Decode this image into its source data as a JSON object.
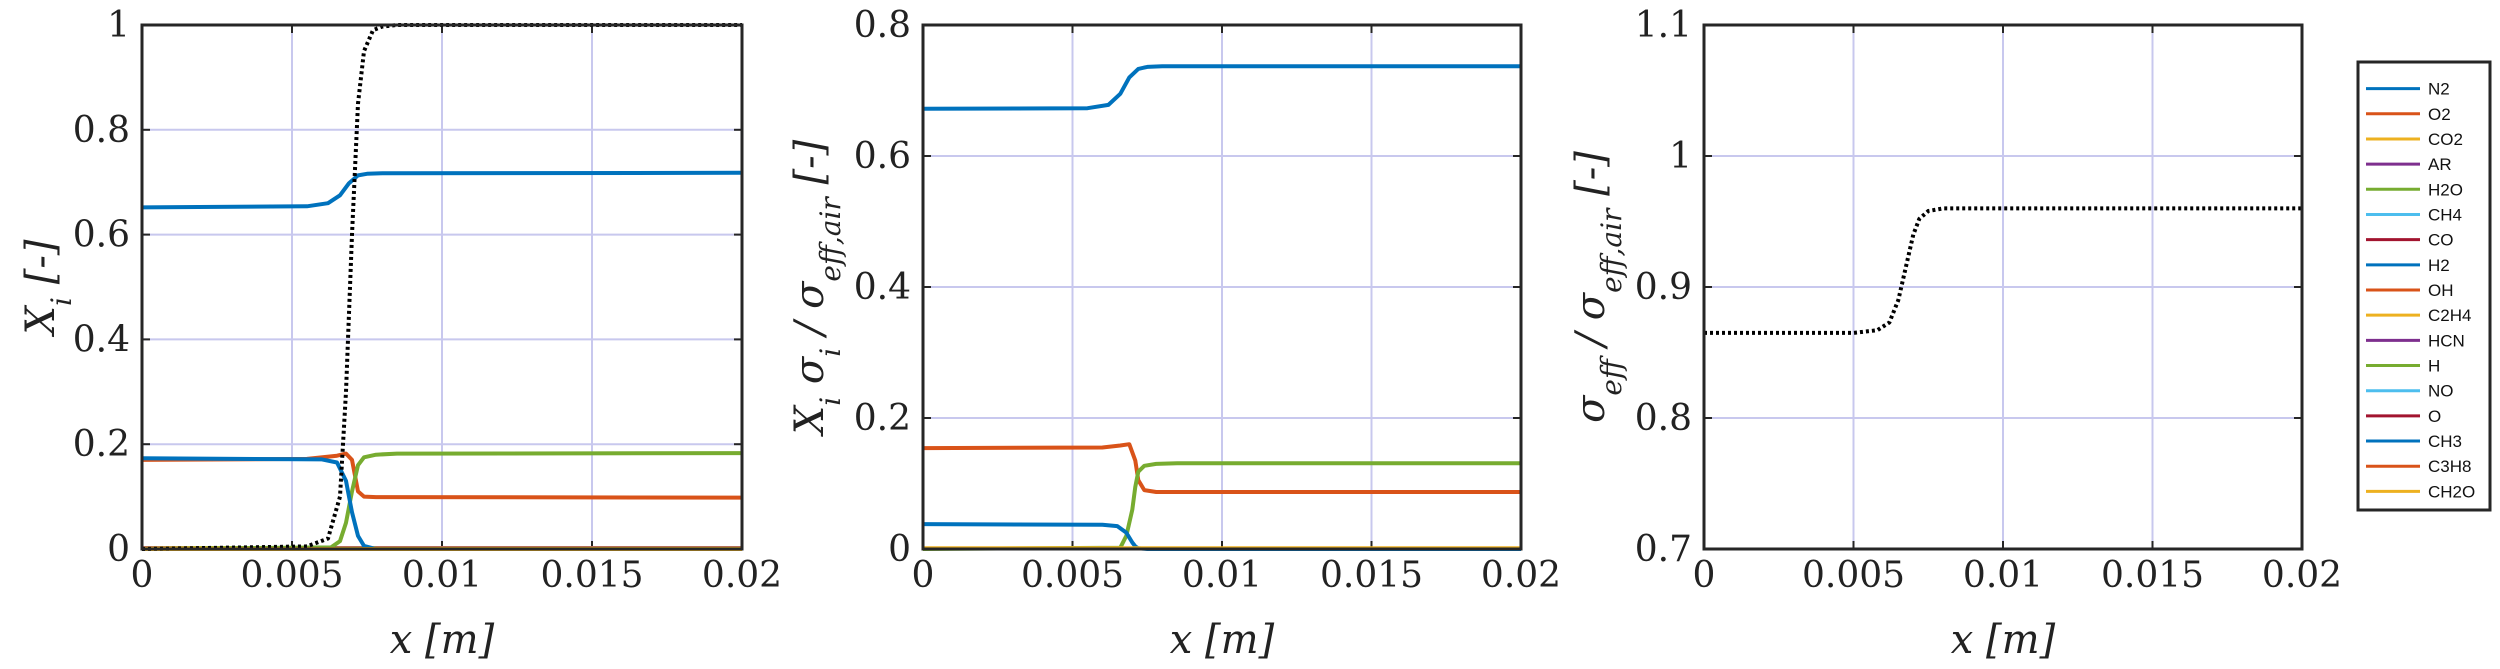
{
  "chart_data": [
    {
      "type": "line",
      "xlabel": "x [m]",
      "ylabel": "X_i [-]",
      "xlim": [
        0,
        0.02
      ],
      "ylim": [
        0,
        1
      ],
      "xticks": [
        "0",
        "0.005",
        "0.01",
        "0.015",
        "0.02"
      ],
      "yticks": [
        "0",
        "0.2",
        "0.4",
        "0.6",
        "0.8",
        "1"
      ],
      "grid": true,
      "series": [
        {
          "name": "N2",
          "color": "#0072BD",
          "style": "solid",
          "x": [
            0,
            0.0055,
            0.0062,
            0.0066,
            0.0069,
            0.0072,
            0.0075,
            0.008,
            0.02
          ],
          "y": [
            0.652,
            0.654,
            0.66,
            0.675,
            0.698,
            0.713,
            0.716,
            0.717,
            0.718
          ]
        },
        {
          "name": "O2",
          "color": "#D95319",
          "style": "solid",
          "x": [
            0,
            0.0055,
            0.0065,
            0.0068,
            0.007,
            0.0071,
            0.0072,
            0.0074,
            0.0078,
            0.02
          ],
          "y": [
            0.17,
            0.172,
            0.178,
            0.182,
            0.17,
            0.14,
            0.11,
            0.1,
            0.099,
            0.098
          ]
        },
        {
          "name": "CO2",
          "color": "#EDB120",
          "style": "solid",
          "x": [
            0,
            0.02
          ],
          "y": [
            0.002,
            0.002
          ]
        },
        {
          "name": "AR",
          "color": "#7E2F8E",
          "style": "solid",
          "x": [
            0,
            0.02
          ],
          "y": [
            0.001,
            0.001
          ]
        },
        {
          "name": "H2O",
          "color": "#77AC30",
          "style": "solid",
          "x": [
            0,
            0.0063,
            0.0066,
            0.0068,
            0.007,
            0.0072,
            0.0074,
            0.0078,
            0.0085,
            0.02
          ],
          "y": [
            0.0,
            0.003,
            0.015,
            0.05,
            0.11,
            0.16,
            0.175,
            0.18,
            0.182,
            0.183
          ]
        },
        {
          "name": "CH4",
          "color": "#4DBEEE",
          "style": "solid",
          "x": [
            0,
            0.02
          ],
          "y": [
            0.0,
            0.0
          ]
        },
        {
          "name": "CO",
          "color": "#A2142F",
          "style": "solid",
          "x": [
            0,
            0.02
          ],
          "y": [
            0.0,
            0.0
          ]
        },
        {
          "name": "H2",
          "color": "#0072BD",
          "style": "solid",
          "x": [
            0,
            0.006,
            0.0065,
            0.0068,
            0.007,
            0.0072,
            0.0074,
            0.0078,
            0.02
          ],
          "y": [
            0.173,
            0.171,
            0.165,
            0.13,
            0.07,
            0.025,
            0.006,
            0.0,
            0.0
          ]
        },
        {
          "name": "OH",
          "color": "#D95319",
          "style": "solid",
          "x": [
            0,
            0.02
          ],
          "y": [
            0.0,
            0.0
          ]
        },
        {
          "name": "C2H4",
          "color": "#EDB120",
          "style": "solid",
          "x": [
            0,
            0.02
          ],
          "y": [
            0.0,
            0.0
          ]
        },
        {
          "name": "HCN",
          "color": "#7E2F8E",
          "style": "solid",
          "x": [
            0,
            0.02
          ],
          "y": [
            0.0,
            0.0
          ]
        },
        {
          "name": "H",
          "color": "#77AC30",
          "style": "solid",
          "x": [
            0,
            0.02
          ],
          "y": [
            0.0,
            0.0
          ]
        },
        {
          "name": "NO",
          "color": "#4DBEEE",
          "style": "solid",
          "x": [
            0,
            0.02
          ],
          "y": [
            0.0,
            0.0
          ]
        },
        {
          "name": "O",
          "color": "#A2142F",
          "style": "solid",
          "x": [
            0,
            0.02
          ],
          "y": [
            0.0,
            0.0
          ]
        },
        {
          "name": "CH3",
          "color": "#0072BD",
          "style": "solid",
          "x": [
            0,
            0.02
          ],
          "y": [
            0.0,
            0.0
          ]
        },
        {
          "name": "C3H8",
          "color": "#D95319",
          "style": "solid",
          "x": [
            0,
            0.02
          ],
          "y": [
            0.0,
            0.0
          ]
        },
        {
          "name": "CH2O",
          "color": "#EDB120",
          "style": "solid",
          "x": [
            0,
            0.02
          ],
          "y": [
            0.0,
            0.0
          ]
        },
        {
          "name": "",
          "color": "#000000",
          "style": "dotted",
          "x": [
            0,
            0.0055,
            0.0062,
            0.0066,
            0.0068,
            0.007,
            0.0072,
            0.0074,
            0.0077,
            0.008,
            0.0085,
            0.02
          ],
          "y": [
            0.0,
            0.005,
            0.02,
            0.1,
            0.3,
            0.6,
            0.85,
            0.95,
            0.99,
            0.997,
            1.0,
            1.0
          ]
        }
      ]
    },
    {
      "type": "line",
      "xlabel": "x [m]",
      "ylabel": "X_i σ_i / σ_eff,air [-]",
      "xlim": [
        0,
        0.02
      ],
      "ylim": [
        0,
        0.8
      ],
      "xticks": [
        "0",
        "0.005",
        "0.01",
        "0.015",
        "0.02"
      ],
      "yticks": [
        "0",
        "0.2",
        "0.4",
        "0.6",
        "0.8"
      ],
      "grid": true,
      "series": [
        {
          "name": "N2",
          "color": "#0072BD",
          "style": "solid",
          "x": [
            0,
            0.0055,
            0.0062,
            0.0066,
            0.0069,
            0.0072,
            0.0075,
            0.008,
            0.02
          ],
          "y": [
            0.672,
            0.673,
            0.678,
            0.695,
            0.72,
            0.733,
            0.736,
            0.737,
            0.737
          ]
        },
        {
          "name": "O2",
          "color": "#D95319",
          "style": "solid",
          "x": [
            0,
            0.006,
            0.0066,
            0.0069,
            0.0071,
            0.0072,
            0.0074,
            0.0078,
            0.02
          ],
          "y": [
            0.154,
            0.155,
            0.158,
            0.16,
            0.135,
            0.105,
            0.09,
            0.087,
            0.087
          ]
        },
        {
          "name": "H2O",
          "color": "#77AC30",
          "style": "solid",
          "x": [
            0,
            0.0066,
            0.0068,
            0.007,
            0.0071,
            0.0072,
            0.0074,
            0.0078,
            0.0085,
            0.02
          ],
          "y": [
            0.0,
            0.002,
            0.02,
            0.06,
            0.095,
            0.118,
            0.127,
            0.13,
            0.131,
            0.131
          ]
        },
        {
          "name": "H2",
          "color": "#0072BD",
          "style": "solid",
          "x": [
            0,
            0.006,
            0.0065,
            0.0068,
            0.007,
            0.0071,
            0.0072,
            0.0075,
            0.02
          ],
          "y": [
            0.038,
            0.037,
            0.035,
            0.025,
            0.01,
            0.004,
            0.001,
            0.0,
            0.0
          ]
        },
        {
          "name": "CO2",
          "color": "#EDB120",
          "style": "solid",
          "x": [
            0,
            0.02
          ],
          "y": [
            0.001,
            0.001
          ]
        }
      ]
    },
    {
      "type": "line",
      "xlabel": "x [m]",
      "ylabel": "σ_eff / σ_eff,air [-]",
      "xlim": [
        0,
        0.02
      ],
      "ylim": [
        0.7,
        1.1
      ],
      "xticks": [
        "0",
        "0.005",
        "0.01",
        "0.015",
        "0.02"
      ],
      "yticks": [
        "0.7",
        "0.8",
        "0.9",
        "1",
        "1.1"
      ],
      "grid": true,
      "series": [
        {
          "name": "",
          "color": "#000000",
          "style": "dotted",
          "x": [
            0,
            0.005,
            0.0058,
            0.0062,
            0.0065,
            0.0068,
            0.007,
            0.0072,
            0.0075,
            0.008,
            0.02
          ],
          "y": [
            0.865,
            0.865,
            0.867,
            0.873,
            0.89,
            0.92,
            0.94,
            0.952,
            0.958,
            0.96,
            0.96
          ]
        }
      ]
    }
  ],
  "legend": {
    "placement": "right",
    "entries": [
      {
        "name": "N2",
        "color": "#0072BD"
      },
      {
        "name": "O2",
        "color": "#D95319"
      },
      {
        "name": "CO2",
        "color": "#EDB120"
      },
      {
        "name": "AR",
        "color": "#7E2F8E"
      },
      {
        "name": "H2O",
        "color": "#77AC30"
      },
      {
        "name": "CH4",
        "color": "#4DBEEE"
      },
      {
        "name": "CO",
        "color": "#A2142F"
      },
      {
        "name": "H2",
        "color": "#0072BD"
      },
      {
        "name": "OH",
        "color": "#D95319"
      },
      {
        "name": "C2H4",
        "color": "#EDB120"
      },
      {
        "name": "HCN",
        "color": "#7E2F8E"
      },
      {
        "name": "H",
        "color": "#77AC30"
      },
      {
        "name": "NO",
        "color": "#4DBEEE"
      },
      {
        "name": "O",
        "color": "#A2142F"
      },
      {
        "name": "CH3",
        "color": "#0072BD"
      },
      {
        "name": "C3H8",
        "color": "#D95319"
      },
      {
        "name": "CH2O",
        "color": "#EDB120"
      }
    ]
  },
  "colors": {
    "grid": "#C8C8EE",
    "axes": "#262626"
  }
}
